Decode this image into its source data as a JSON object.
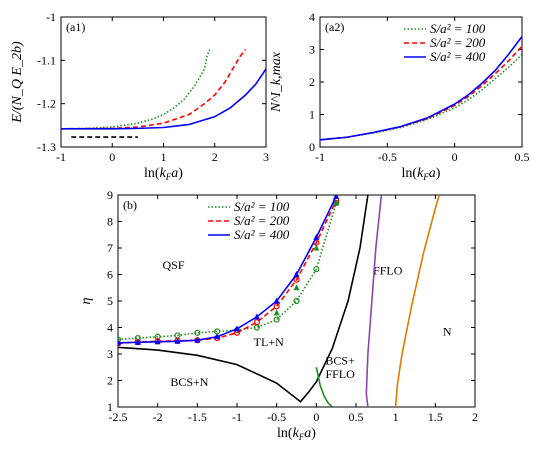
{
  "chart_data": [
    {
      "type": "line",
      "panel_label": "(a1)",
      "xlabel": "ln(k_F a)",
      "ylabel": "E/(N_Q E_2b)",
      "xlim": [
        -1,
        3
      ],
      "ylim": [
        -1.3,
        -1
      ],
      "xticks": [
        -1,
        0,
        1,
        2,
        3
      ],
      "yticks": [
        -1,
        -1.1,
        -1.2,
        -1.3
      ],
      "xtick_labels": [
        "-1",
        "0",
        "1",
        "2",
        "3"
      ],
      "ytick_labels": [
        "-1",
        "-1.1",
        "-1.2",
        "-1.3"
      ],
      "series": [
        {
          "color": "#228b22",
          "style": "dotted",
          "points": [
            [
              -1,
              -1.258
            ],
            [
              -0.5,
              -1.257
            ],
            [
              0,
              -1.254
            ],
            [
              0.5,
              -1.245
            ],
            [
              0.8,
              -1.235
            ],
            [
              1.0,
              -1.225
            ],
            [
              1.2,
              -1.21
            ],
            [
              1.4,
              -1.19
            ],
            [
              1.6,
              -1.16
            ],
            [
              1.8,
              -1.12
            ],
            [
              1.85,
              -1.09
            ],
            [
              1.9,
              -1.075
            ]
          ]
        },
        {
          "color": "#ff0000",
          "style": "dashed",
          "points": [
            [
              -1,
              -1.258
            ],
            [
              0,
              -1.257
            ],
            [
              0.5,
              -1.254
            ],
            [
              1.0,
              -1.245
            ],
            [
              1.5,
              -1.225
            ],
            [
              1.8,
              -1.2
            ],
            [
              2.0,
              -1.18
            ],
            [
              2.2,
              -1.15
            ],
            [
              2.4,
              -1.11
            ],
            [
              2.5,
              -1.09
            ],
            [
              2.6,
              -1.075
            ]
          ]
        },
        {
          "color": "#0000ff",
          "style": "solid",
          "points": [
            [
              -1,
              -1.258
            ],
            [
              0,
              -1.258
            ],
            [
              0.5,
              -1.257
            ],
            [
              1.0,
              -1.255
            ],
            [
              1.5,
              -1.248
            ],
            [
              2.0,
              -1.23
            ],
            [
              2.3,
              -1.21
            ],
            [
              2.6,
              -1.18
            ],
            [
              2.8,
              -1.155
            ],
            [
              3.0,
              -1.12
            ]
          ]
        },
        {
          "color": "#000000",
          "style": "dashed",
          "points": [
            [
              -0.8,
              -1.277
            ],
            [
              0.5,
              -1.277
            ]
          ]
        }
      ]
    },
    {
      "type": "line",
      "panel_label": "(a2)",
      "xlabel": "ln(k_F a)",
      "ylabel": "N^I_k,max",
      "xlim": [
        -1,
        0.5
      ],
      "ylim": [
        0,
        4
      ],
      "xticks": [
        -1,
        -0.5,
        0,
        0.5
      ],
      "yticks": [
        0,
        1,
        2,
        3,
        4
      ],
      "xtick_labels": [
        "-1",
        "-0.5",
        "0",
        "0.5"
      ],
      "ytick_labels": [
        "0",
        "1",
        "2",
        "3",
        "4"
      ],
      "legend": [
        "S/a² = 100",
        "S/a² = 200",
        "S/a² = 400"
      ],
      "legend_position": "top-right",
      "series": [
        {
          "name": "S/a² = 100",
          "color": "#228b22",
          "style": "dotted",
          "points": [
            [
              -1,
              0.22
            ],
            [
              -0.8,
              0.3
            ],
            [
              -0.6,
              0.43
            ],
            [
              -0.4,
              0.6
            ],
            [
              -0.2,
              0.85
            ],
            [
              0,
              1.2
            ],
            [
              0.1,
              1.45
            ],
            [
              0.2,
              1.75
            ],
            [
              0.3,
              2.1
            ],
            [
              0.4,
              2.45
            ],
            [
              0.5,
              2.85
            ]
          ]
        },
        {
          "name": "S/a² = 200",
          "color": "#ff0000",
          "style": "dashed",
          "points": [
            [
              -1,
              0.22
            ],
            [
              -0.8,
              0.3
            ],
            [
              -0.6,
              0.45
            ],
            [
              -0.4,
              0.62
            ],
            [
              -0.2,
              0.88
            ],
            [
              0,
              1.28
            ],
            [
              0.1,
              1.55
            ],
            [
              0.2,
              1.88
            ],
            [
              0.3,
              2.25
            ],
            [
              0.4,
              2.65
            ],
            [
              0.5,
              3.1
            ]
          ]
        },
        {
          "name": "S/a² = 400",
          "color": "#0000ff",
          "style": "solid",
          "points": [
            [
              -1,
              0.22
            ],
            [
              -0.8,
              0.3
            ],
            [
              -0.6,
              0.45
            ],
            [
              -0.4,
              0.63
            ],
            [
              -0.2,
              0.9
            ],
            [
              0,
              1.32
            ],
            [
              0.1,
              1.6
            ],
            [
              0.2,
              1.95
            ],
            [
              0.3,
              2.35
            ],
            [
              0.4,
              2.85
            ],
            [
              0.5,
              3.4
            ]
          ]
        }
      ]
    },
    {
      "type": "line",
      "panel_label": "(b)",
      "xlabel": "ln(k_F a)",
      "ylabel": "η",
      "xlim": [
        -2.5,
        2
      ],
      "ylim": [
        1,
        9
      ],
      "xticks": [
        -2.5,
        -2,
        -1.5,
        -1,
        -0.5,
        0,
        0.5,
        1,
        1.5,
        2
      ],
      "yticks": [
        1,
        2,
        3,
        4,
        5,
        6,
        7,
        8,
        9
      ],
      "xtick_labels": [
        "-2.5",
        "-2",
        "-1.5",
        "-1",
        "-0.5",
        "0",
        "0.5",
        "1",
        "1.5",
        "2"
      ],
      "ytick_labels": [
        "1",
        "2",
        "3",
        "4",
        "5",
        "6",
        "7",
        "8",
        "9"
      ],
      "legend": [
        "S/a² = 100",
        "S/a² = 200",
        "S/a² = 400"
      ],
      "legend_position": "top-left",
      "regions": [
        {
          "label": "QSF",
          "x": -1.8,
          "y": 6.2
        },
        {
          "label": "TL+N",
          "x": -0.6,
          "y": 3.3
        },
        {
          "label": "BCS+N",
          "x": -1.6,
          "y": 1.8
        },
        {
          "label": "BCS+",
          "x": 0.3,
          "y": 2.6
        },
        {
          "label": "FFLO",
          "x": 0.3,
          "y": 2.1
        },
        {
          "label": "FFLO",
          "x": 0.9,
          "y": 6.0
        },
        {
          "label": "N",
          "x": 1.65,
          "y": 3.7
        }
      ],
      "series": [
        {
          "name": "S/a² = 100",
          "color": "#228b22",
          "style": "dotted",
          "marker": "circle",
          "points": [
            [
              -2.5,
              3.55
            ],
            [
              -2.25,
              3.6
            ],
            [
              -2,
              3.65
            ],
            [
              -1.75,
              3.7
            ],
            [
              -1.5,
              3.8
            ],
            [
              -1.25,
              3.85
            ],
            [
              -1,
              3.9
            ],
            [
              -0.75,
              4.0
            ],
            [
              -0.5,
              4.3
            ],
            [
              -0.25,
              5.0
            ],
            [
              0,
              6.2
            ],
            [
              0.25,
              8.7
            ]
          ]
        },
        {
          "name": "S/a² = 200",
          "color": "#ff0000",
          "style": "dashed",
          "marker": "circle",
          "points": [
            [
              -2.5,
              3.4
            ],
            [
              -2.25,
              3.45
            ],
            [
              -2,
              3.48
            ],
            [
              -1.75,
              3.5
            ],
            [
              -1.5,
              3.52
            ],
            [
              -1.25,
              3.6
            ],
            [
              -1,
              3.8
            ],
            [
              -0.75,
              4.2
            ],
            [
              -0.5,
              4.8
            ],
            [
              -0.25,
              5.8
            ],
            [
              0,
              7.2
            ],
            [
              0.25,
              8.8
            ]
          ]
        },
        {
          "name": "S/a² = 400",
          "color": "#0000ff",
          "style": "solid",
          "marker": "triangle",
          "points": [
            [
              -2.5,
              3.42
            ],
            [
              -2.25,
              3.44
            ],
            [
              -2,
              3.46
            ],
            [
              -1.75,
              3.48
            ],
            [
              -1.5,
              3.52
            ],
            [
              -1.25,
              3.65
            ],
            [
              -1,
              3.95
            ],
            [
              -0.75,
              4.4
            ],
            [
              -0.5,
              5.0
            ],
            [
              -0.25,
              6.0
            ],
            [
              0,
              7.4
            ],
            [
              0.25,
              8.95
            ]
          ]
        },
        {
          "color": "#228b22",
          "style": "solid-markers-only",
          "marker": "triangle",
          "points": [
            [
              -0.5,
              4.55
            ],
            [
              -0.25,
              5.5
            ],
            [
              0,
              7.0
            ],
            [
              0.25,
              8.7
            ]
          ]
        },
        {
          "color": "#000000",
          "style": "solid",
          "points": [
            [
              -2.5,
              3.25
            ],
            [
              -2,
              3.15
            ],
            [
              -1.5,
              2.95
            ],
            [
              -1,
              2.6
            ],
            [
              -0.5,
              1.9
            ],
            [
              -0.2,
              1.2
            ],
            [
              -0.1,
              1.55
            ],
            [
              0,
              1.95
            ],
            [
              0.2,
              3.2
            ],
            [
              0.4,
              5.0
            ],
            [
              0.55,
              7.0
            ],
            [
              0.65,
              9
            ]
          ]
        },
        {
          "color": "#228b22",
          "style": "solid",
          "points": [
            [
              0,
              2.5
            ],
            [
              0.05,
              1.8
            ],
            [
              0.1,
              1.4
            ],
            [
              0.15,
              1.15
            ],
            [
              0.2,
              1.0
            ]
          ]
        },
        {
          "color": "#8e44ad",
          "style": "solid",
          "points": [
            [
              0.65,
              1.0
            ],
            [
              0.63,
              1.5
            ],
            [
              0.65,
              3
            ],
            [
              0.7,
              5
            ],
            [
              0.75,
              7
            ],
            [
              0.82,
              9
            ]
          ]
        },
        {
          "color": "#e07b00",
          "style": "solid",
          "points": [
            [
              1.0,
              1.0
            ],
            [
              1.02,
              1.8
            ],
            [
              1.08,
              3
            ],
            [
              1.2,
              4.8
            ],
            [
              1.35,
              6.8
            ],
            [
              1.5,
              8.5
            ],
            [
              1.55,
              9
            ]
          ]
        }
      ]
    }
  ]
}
